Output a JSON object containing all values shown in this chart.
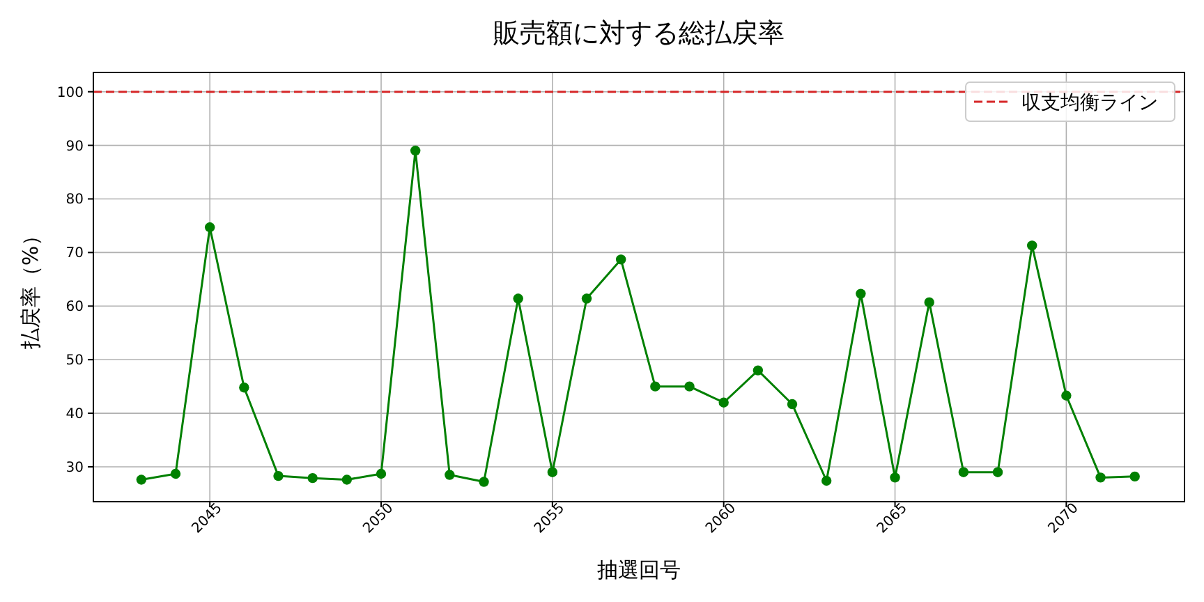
{
  "chart_data": {
    "type": "line",
    "title": "販売額に対する総払戻率",
    "xlabel": "抽選回号",
    "ylabel": "払戻率（%）",
    "x": [
      2043,
      2044,
      2045,
      2046,
      2047,
      2048,
      2049,
      2050,
      2051,
      2052,
      2053,
      2054,
      2055,
      2056,
      2057,
      2058,
      2059,
      2060,
      2061,
      2062,
      2063,
      2064,
      2065,
      2066,
      2067,
      2068,
      2069,
      2070,
      2071,
      2072
    ],
    "series": [
      {
        "color": "#008000",
        "values": [
          27.6,
          28.7,
          74.7,
          44.8,
          28.3,
          27.9,
          27.6,
          28.7,
          89,
          28.5,
          27.2,
          61.4,
          29,
          61.4,
          68.7,
          45,
          45,
          42,
          48,
          41.7,
          27.4,
          62.3,
          28,
          60.7,
          29,
          29,
          71.3,
          43.3,
          28,
          28.2
        ]
      }
    ],
    "xlim": [
      2041.6,
      2073.45
    ],
    "xticks": [
      2045,
      2050,
      2055,
      2060,
      2065,
      2070
    ],
    "ylim": [
      23.5,
      103.6
    ],
    "yticks": [
      30,
      40,
      50,
      60,
      70,
      80,
      90,
      100
    ],
    "ref_lines": [
      {
        "axis": "y",
        "value": 100,
        "label": "収支均衡ライン",
        "color": "#d62728",
        "line_style": "dashed"
      }
    ],
    "grid": true,
    "legend": "top right",
    "marker": "circle",
    "line_style": "solid"
  }
}
